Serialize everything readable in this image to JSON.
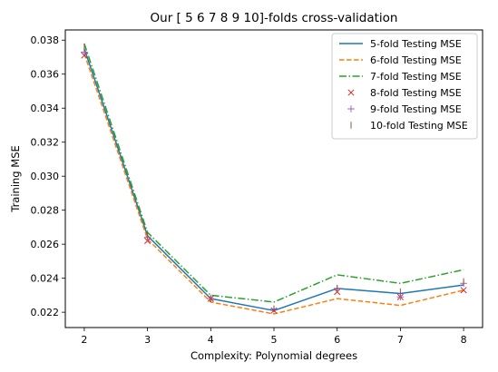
{
  "chart_data": {
    "type": "line",
    "title": "Our [ 5  6  7  8  9 10]-folds cross-validation",
    "xlabel": "Complexity: Polynomial degrees",
    "ylabel": "Training MSE",
    "x": [
      2,
      3,
      4,
      5,
      6,
      7,
      8
    ],
    "xlim": [
      1.7,
      8.3
    ],
    "ylim": [
      0.0211,
      0.0386
    ],
    "xticks": [
      2,
      3,
      4,
      5,
      6,
      7,
      8
    ],
    "yticks": [
      0.022,
      0.024,
      0.026,
      0.028,
      0.03,
      0.032,
      0.034,
      0.036,
      0.038
    ],
    "ytick_labels": [
      "0.022",
      "0.024",
      "0.026",
      "0.028",
      "0.030",
      "0.032",
      "0.034",
      "0.036",
      "0.038"
    ],
    "grid": false,
    "legend_position": "top-right",
    "series": [
      {
        "name": "5-fold Testing MSE",
        "style": "solid",
        "marker": "none",
        "color": "#1f77b4",
        "values": [
          0.0375,
          0.0265,
          0.0228,
          0.0221,
          0.0234,
          0.0231,
          0.0236
        ]
      },
      {
        "name": "6-fold Testing MSE",
        "style": "dashed",
        "marker": "none",
        "color": "#ff7f0e",
        "values": [
          0.0372,
          0.0263,
          0.0226,
          0.0219,
          0.0228,
          0.0224,
          0.0233
        ]
      },
      {
        "name": "7-fold Testing MSE",
        "style": "dashdot",
        "marker": "none",
        "color": "#2ca02c",
        "values": [
          0.0378,
          0.0267,
          0.023,
          0.0226,
          0.0242,
          0.0237,
          0.0245
        ]
      },
      {
        "name": "8-fold Testing MSE",
        "style": "none",
        "marker": "x",
        "color": "#d62728",
        "values": [
          0.0371,
          0.0262,
          0.0228,
          0.0221,
          0.0232,
          0.0229,
          0.0233
        ]
      },
      {
        "name": "9-fold Testing MSE",
        "style": "none",
        "marker": "+",
        "color": "#9467bd",
        "values": [
          0.0373,
          0.0264,
          0.0228,
          0.0222,
          0.0234,
          0.0229,
          0.0237
        ]
      },
      {
        "name": "10-fold Testing MSE",
        "style": "none",
        "marker": "|",
        "color": "#8c564b",
        "values": [
          0.0376,
          0.0265,
          0.0228,
          0.0222,
          0.0234,
          0.0232,
          0.0238
        ]
      }
    ]
  }
}
